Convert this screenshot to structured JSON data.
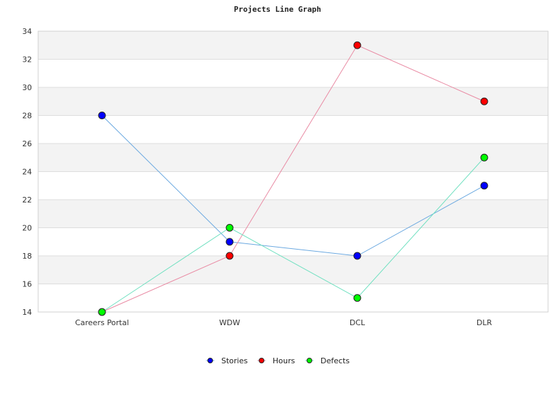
{
  "chart_data": {
    "type": "line",
    "title": "Projects Line Graph",
    "xlabel": "",
    "ylabel": "",
    "categories": [
      "Careers Portal",
      "WDW",
      "DCL",
      "DLR"
    ],
    "ylim": [
      14,
      34
    ],
    "yticks": [
      14,
      16,
      18,
      20,
      22,
      24,
      26,
      28,
      30,
      32,
      34
    ],
    "grid": true,
    "legend_position": "bottom-center",
    "series": [
      {
        "name": "Stories",
        "values": [
          28,
          19,
          18,
          23
        ],
        "marker_color": "#0000ff",
        "line_color": "#6aa8e0"
      },
      {
        "name": "Hours",
        "values": [
          14,
          18,
          33,
          29
        ],
        "marker_color": "#ff0000",
        "line_color": "#e98aa3"
      },
      {
        "name": "Defects",
        "values": [
          14,
          20,
          15,
          25
        ],
        "marker_color": "#00ff00",
        "line_color": "#6fe0c0"
      }
    ]
  }
}
